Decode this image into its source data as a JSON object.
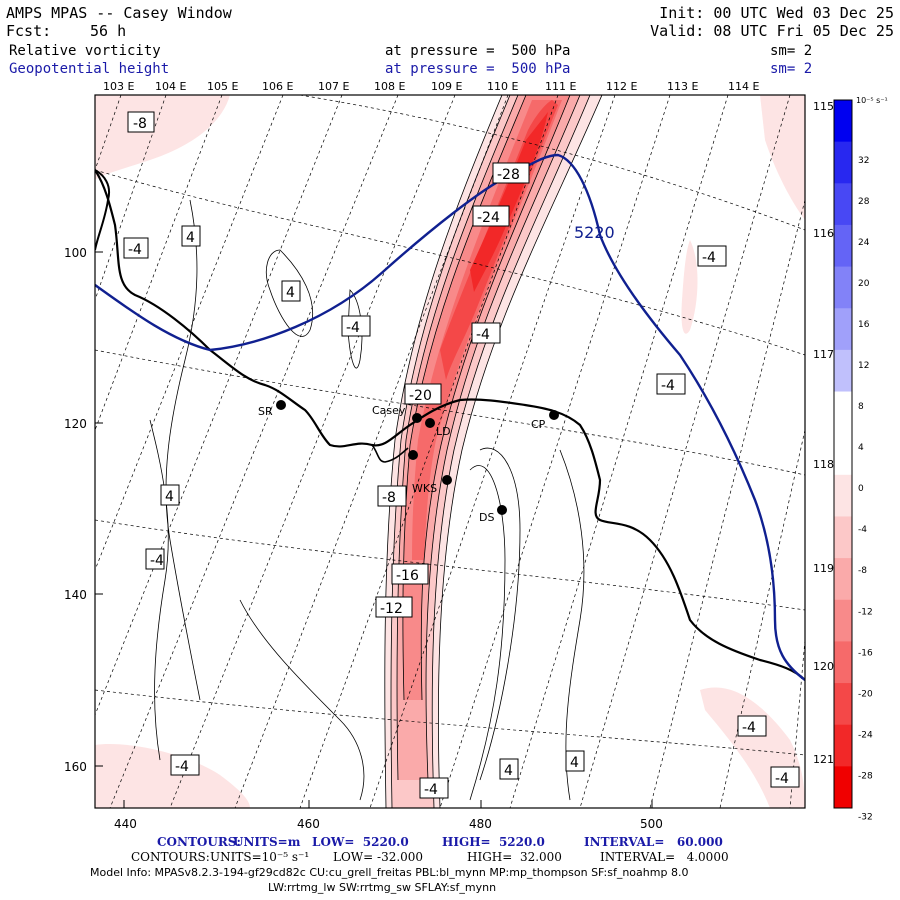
{
  "header": {
    "title": "AMPS MPAS -- Casey Window",
    "fcst_label": "Fcst:",
    "fcst_value": "56 h",
    "init": "Init: 00 UTC Wed 03 Dec 25",
    "valid": "Valid: 08 UTC Fri 05 Dec 25",
    "field1": {
      "name": "Relative vorticity",
      "pressure": "at pressure =  500 hPa",
      "sm": "sm= 2"
    },
    "field2": {
      "name": "Geopotential height",
      "pressure": "at pressure =  500 hPa",
      "sm": "sm= 2"
    }
  },
  "map": {
    "lon_labels": [
      "103 E",
      "104 E",
      "105 E",
      "106 E",
      "107 E",
      "108 E",
      "109 E",
      "110 E",
      "111 E",
      "112 E",
      "113 E",
      "114 E"
    ],
    "lon_labels_right": [
      "115 E",
      "116 E",
      "117 E",
      "118 E",
      "119 E",
      "120 E",
      "121 E"
    ],
    "x_ticks": [
      "440",
      "460",
      "480",
      "500"
    ],
    "y_ticks": [
      "100",
      "120",
      "140",
      "160"
    ],
    "stations": [
      {
        "label": "SR"
      },
      {
        "label": "Casey"
      },
      {
        "label": "LD"
      },
      {
        "label": "CP"
      },
      {
        "label": "WKS"
      },
      {
        "label": "DS"
      }
    ],
    "height_contour_label": "5220",
    "vorticity_labels": [
      "-8",
      "-4",
      "4",
      "4",
      "-4",
      "-4",
      "-4",
      "4",
      "-4",
      "-28",
      "-24",
      "-20",
      "-16",
      "-12",
      "-8",
      "-4",
      "4",
      "4",
      "-4",
      "-4",
      "-4"
    ]
  },
  "colorbar": {
    "units": "10⁻⁵ s⁻¹",
    "labels": [
      "32",
      "28",
      "24",
      "20",
      "16",
      "12",
      "8",
      "4",
      "0",
      "-4",
      "-8",
      "-12",
      "-16",
      "-20",
      "-24",
      "-28",
      "-32"
    ],
    "colors": [
      "#0000f0",
      "#2828f0",
      "#4848f4",
      "#6464f6",
      "#8282f8",
      "#a0a0fa",
      "#c0c0fc",
      "#ffffff",
      "#ffffff",
      "#fde4e4",
      "#fcc8c8",
      "#faaaaa",
      "#f88a8a",
      "#f66a6a",
      "#f44848",
      "#f22828",
      "#f00000"
    ]
  },
  "footer": {
    "line1": {
      "label": "CONTOURS:",
      "units": "UNITS=m",
      "low": "LOW=  5220.0",
      "high": "HIGH=  5220.0",
      "interval": "INTERVAL=   60.000"
    },
    "line2": {
      "label": "CONTOURS:",
      "units": "UNITS=10⁻⁵ s⁻¹",
      "low": "LOW= -32.000",
      "high": "HIGH=  32.000",
      "interval": "INTERVAL=   4.0000"
    },
    "model_line1": "Model Info: MPASv8.2.3-194-gf29cd82c CU:cu_grell_freitas PBL:bl_mynn MP:mp_thompson SF:sf_noahmp 8.0",
    "model_line2": "LW:rrtmg_lw SW:rrtmg_sw SFLAY:sf_mynn"
  }
}
